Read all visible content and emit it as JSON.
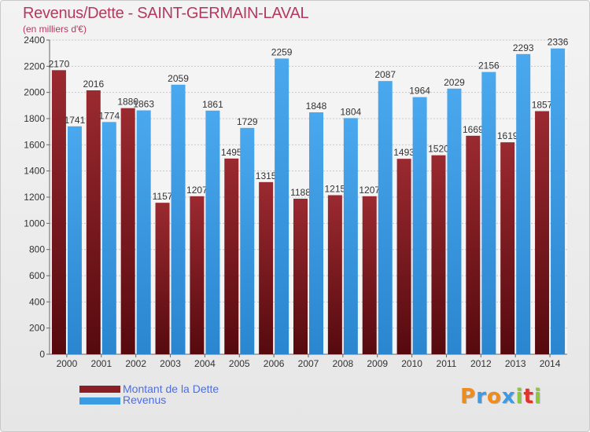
{
  "header": {
    "title": "Revenus/Dette - SAINT-GERMAIN-LAVAL",
    "subtitle": "(en milliers d'€)"
  },
  "chart_data": {
    "type": "bar",
    "categories": [
      "2000",
      "2001",
      "2002",
      "2003",
      "2004",
      "2005",
      "2006",
      "2007",
      "2008",
      "2009",
      "2010",
      "2011",
      "2012",
      "2013",
      "2014"
    ],
    "series": [
      {
        "name": "Montant de la Dette",
        "color": "#8a1e24",
        "values": [
          2170,
          2016,
          1880,
          1157,
          1207,
          1495,
          1315,
          1188,
          1215,
          1207,
          1493,
          1520,
          1669,
          1619,
          1857
        ],
        "labels": [
          "2170",
          "2016",
          "1880",
          "1157",
          "1207",
          "1495",
          "1315",
          "1188",
          "1215",
          "1207",
          "1493",
          "1520",
          "1669",
          "1619",
          "1857"
        ]
      },
      {
        "name": "Revenus",
        "color": "#3d9be3",
        "values": [
          1741,
          1774,
          1863,
          2059,
          1861,
          1729,
          2259,
          1848,
          1804,
          2087,
          1964,
          2029,
          2156,
          2293,
          2336
        ],
        "labels": [
          "1741",
          "1774",
          "1863",
          "2059",
          "1861",
          "1729",
          "2259",
          "1848",
          "1804",
          "2087",
          "1964",
          "2029",
          "2156",
          "2293",
          "2336"
        ]
      }
    ],
    "ylim": [
      0,
      2400
    ],
    "yticks": [
      0,
      200,
      400,
      600,
      800,
      1000,
      1200,
      1400,
      1600,
      1800,
      2000,
      2200,
      2400
    ],
    "grid": true,
    "legend_position": "bottom-left"
  },
  "legend": {
    "items": [
      {
        "label": "Montant de la Dette",
        "color": "#8a1e24"
      },
      {
        "label": "Revenus",
        "color": "#3d9be3"
      }
    ]
  },
  "logo": {
    "letters": [
      "P",
      "r",
      "o",
      "x",
      "i",
      "t",
      "i"
    ],
    "colors": [
      "#f08c1e",
      "#3d9be3",
      "#f08c1e",
      "#3d9be3",
      "#8cc63f",
      "#e2322c",
      "#8cc63f"
    ]
  }
}
